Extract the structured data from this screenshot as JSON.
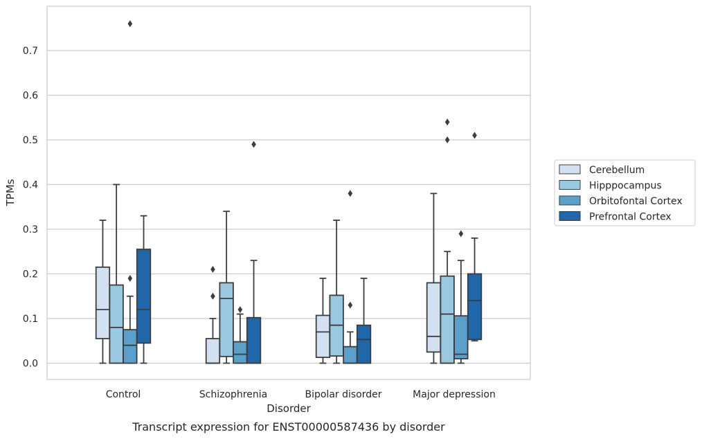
{
  "chart_data": {
    "type": "box",
    "xlabel": "Disorder",
    "ylabel": "TPMs",
    "caption": "Transcript expression for ENST00000587436 by disorder",
    "ylim": [
      -0.036,
      0.8
    ],
    "yticks": [
      "0.0",
      "0.1",
      "0.2",
      "0.3",
      "0.4",
      "0.5",
      "0.6",
      "0.7"
    ],
    "grid": "horizontal",
    "legend_position": "right",
    "categories": [
      "Control",
      "Schizophrenia",
      "Bipolar disorder",
      "Major depression"
    ],
    "series": [
      {
        "name": "Cerebellum",
        "color": "#d2e1f1",
        "boxes": [
          {
            "whislo": 0.0,
            "q1": 0.055,
            "med": 0.12,
            "q3": 0.215,
            "whishi": 0.32,
            "fliers": []
          },
          {
            "whislo": 0.0,
            "q1": 0.0,
            "med": 0.0,
            "q3": 0.055,
            "whishi": 0.1,
            "fliers": [
              0.15,
              0.21
            ]
          },
          {
            "whislo": 0.0,
            "q1": 0.013,
            "med": 0.07,
            "q3": 0.107,
            "whishi": 0.19,
            "fliers": []
          },
          {
            "whislo": 0.0,
            "q1": 0.025,
            "med": 0.06,
            "q3": 0.18,
            "whishi": 0.38,
            "fliers": []
          }
        ]
      },
      {
        "name": "Hipppocampus",
        "color": "#9ac8e0",
        "boxes": [
          {
            "whislo": 0.0,
            "q1": 0.0,
            "med": 0.08,
            "q3": 0.175,
            "whishi": 0.4,
            "fliers": []
          },
          {
            "whislo": 0.0,
            "q1": 0.015,
            "med": 0.145,
            "q3": 0.18,
            "whishi": 0.34,
            "fliers": []
          },
          {
            "whislo": 0.0,
            "q1": 0.016,
            "med": 0.085,
            "q3": 0.152,
            "whishi": 0.32,
            "fliers": []
          },
          {
            "whislo": 0.0,
            "q1": 0.0,
            "med": 0.11,
            "q3": 0.195,
            "whishi": 0.25,
            "fliers": [
              0.5,
              0.54
            ]
          }
        ]
      },
      {
        "name": "Orbitofontal Cortex",
        "color": "#5b9fcb",
        "boxes": [
          {
            "whislo": 0.0,
            "q1": 0.0,
            "med": 0.04,
            "q3": 0.075,
            "whishi": 0.15,
            "fliers": [
              0.19,
              0.76
            ]
          },
          {
            "whislo": 0.0,
            "q1": 0.0,
            "med": 0.02,
            "q3": 0.048,
            "whishi": 0.11,
            "fliers": [
              0.12
            ]
          },
          {
            "whislo": 0.0,
            "q1": 0.0,
            "med": 0.0,
            "q3": 0.037,
            "whishi": 0.07,
            "fliers": [
              0.13,
              0.38
            ]
          },
          {
            "whislo": 0.0,
            "q1": 0.01,
            "med": 0.02,
            "q3": 0.106,
            "whishi": 0.23,
            "fliers": [
              0.29
            ]
          }
        ]
      },
      {
        "name": "Prefrontal Cortex",
        "color": "#2166a8",
        "boxes": [
          {
            "whislo": 0.0,
            "q1": 0.045,
            "med": 0.12,
            "q3": 0.255,
            "whishi": 0.33,
            "fliers": []
          },
          {
            "whislo": 0.0,
            "q1": 0.0,
            "med": 0.0,
            "q3": 0.102,
            "whishi": 0.23,
            "fliers": [
              0.49
            ]
          },
          {
            "whislo": 0.0,
            "q1": 0.0,
            "med": 0.053,
            "q3": 0.085,
            "whishi": 0.19,
            "fliers": []
          },
          {
            "whislo": 0.05,
            "q1": 0.053,
            "med": 0.14,
            "q3": 0.2,
            "whishi": 0.28,
            "fliers": [
              0.51
            ]
          }
        ]
      }
    ]
  }
}
